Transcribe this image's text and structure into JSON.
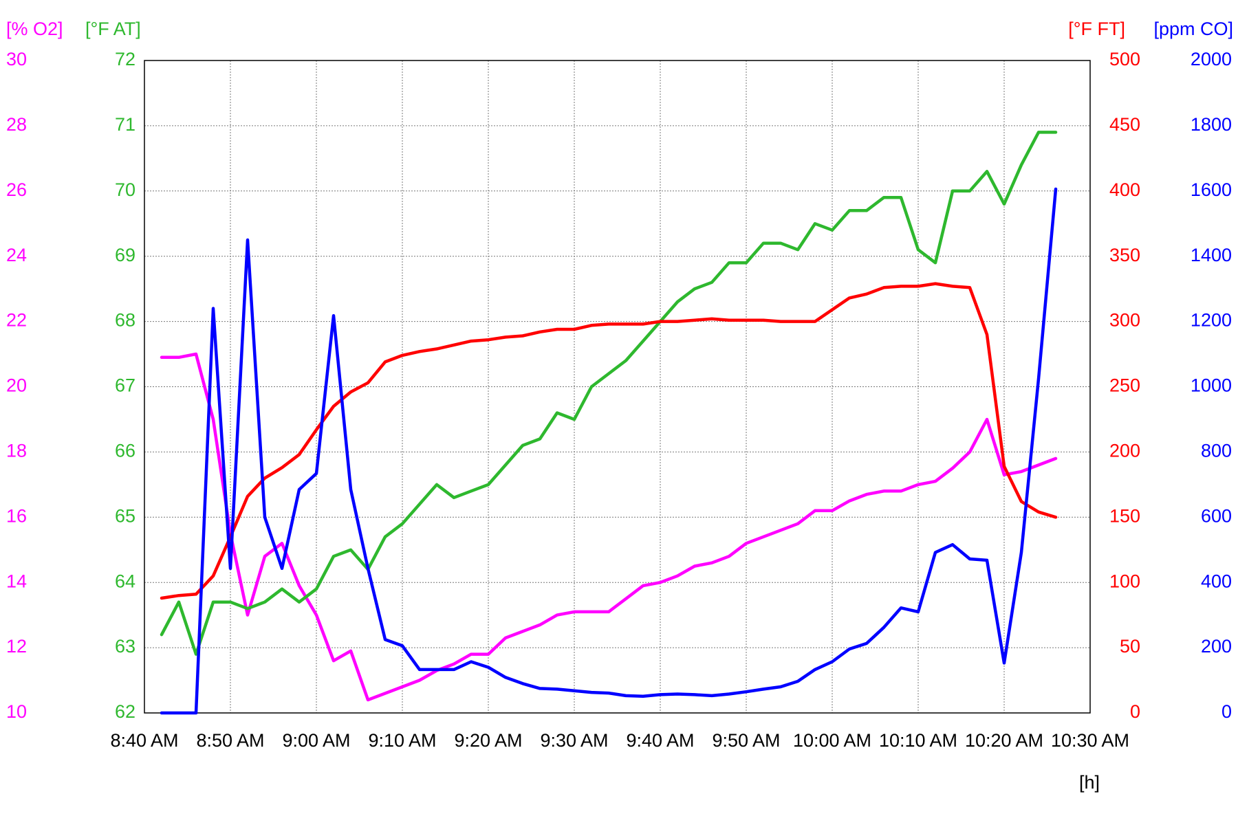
{
  "chart_data": {
    "type": "line",
    "xlabel": "[h]",
    "grid": true,
    "xlim": [
      520,
      630
    ],
    "xticks": [
      {
        "value": 520,
        "label": "8:40 AM"
      },
      {
        "value": 530,
        "label": "8:50 AM"
      },
      {
        "value": 540,
        "label": "9:00 AM"
      },
      {
        "value": 550,
        "label": "9:10 AM"
      },
      {
        "value": 560,
        "label": "9:20 AM"
      },
      {
        "value": 570,
        "label": "9:30 AM"
      },
      {
        "value": 580,
        "label": "9:40 AM"
      },
      {
        "value": 590,
        "label": "9:50 AM"
      },
      {
        "value": 600,
        "label": "10:00 AM"
      },
      {
        "value": 610,
        "label": "10:10 AM"
      },
      {
        "value": 620,
        "label": "10:20 AM"
      },
      {
        "value": 630,
        "label": "10:30 AM"
      }
    ],
    "x": [
      522,
      524,
      526,
      528,
      530,
      532,
      534,
      536,
      538,
      540,
      542,
      544,
      546,
      548,
      550,
      552,
      554,
      556,
      558,
      560,
      562,
      564,
      566,
      568,
      570,
      572,
      574,
      576,
      578,
      580,
      582,
      584,
      586,
      588,
      590,
      592,
      594,
      596,
      598,
      600,
      602,
      604,
      606,
      608,
      610,
      612,
      614,
      616,
      618,
      620,
      622,
      624,
      626
    ],
    "series": [
      {
        "name": "[% O2]",
        "color": "#ff00ff",
        "axis_side": "left",
        "axis_position": "outer",
        "ylim": [
          10,
          30
        ],
        "yticks": [
          10,
          12,
          14,
          16,
          18,
          20,
          22,
          24,
          26,
          28,
          30
        ],
        "values": [
          20.9,
          20.9,
          21.0,
          19.0,
          15.5,
          13.0,
          14.8,
          15.2,
          13.9,
          13.0,
          11.6,
          11.9,
          10.4,
          10.6,
          10.8,
          11.0,
          11.3,
          11.5,
          11.8,
          11.8,
          12.3,
          12.5,
          12.7,
          13.0,
          13.1,
          13.1,
          13.1,
          13.5,
          13.9,
          14.0,
          14.2,
          14.5,
          14.6,
          14.8,
          15.2,
          15.4,
          15.6,
          15.8,
          16.2,
          16.2,
          16.5,
          16.7,
          16.8,
          16.8,
          17.0,
          17.1,
          17.5,
          18.0,
          19.0,
          17.3,
          17.4,
          17.6,
          17.8
        ]
      },
      {
        "name": "[°F AT]",
        "color": "#2eb82e",
        "axis_side": "left",
        "axis_position": "inner",
        "ylim": [
          62,
          72
        ],
        "yticks": [
          62,
          63,
          64,
          65,
          66,
          67,
          68,
          69,
          70,
          71,
          72
        ],
        "values": [
          63.2,
          63.7,
          62.9,
          63.7,
          63.7,
          63.6,
          63.7,
          63.9,
          63.7,
          63.9,
          64.4,
          64.5,
          64.2,
          64.7,
          64.9,
          65.2,
          65.5,
          65.3,
          65.4,
          65.5,
          65.8,
          66.1,
          66.2,
          66.6,
          66.5,
          67.0,
          67.2,
          67.4,
          67.7,
          68.0,
          68.3,
          68.5,
          68.6,
          68.9,
          68.9,
          69.2,
          69.2,
          69.1,
          69.5,
          69.4,
          69.7,
          69.7,
          69.9,
          69.9,
          69.1,
          68.9,
          70.0,
          70.0,
          70.3,
          69.8,
          70.4,
          70.9,
          70.9
        ]
      },
      {
        "name": "[°F FT]",
        "color": "#ff0000",
        "axis_side": "right",
        "axis_position": "inner",
        "ylim": [
          0,
          500
        ],
        "yticks": [
          0,
          50,
          100,
          150,
          200,
          250,
          300,
          350,
          400,
          450,
          500
        ],
        "values": [
          88,
          90,
          91,
          105,
          135,
          166,
          180,
          188,
          198,
          217,
          235,
          246,
          253,
          269,
          274,
          277,
          279,
          282,
          285,
          286,
          288,
          289,
          292,
          294,
          294,
          297,
          298,
          298,
          298,
          300,
          300,
          301,
          302,
          301,
          301,
          301,
          300,
          300,
          300,
          309,
          318,
          321,
          326,
          327,
          327,
          329,
          327,
          326,
          290,
          189,
          162,
          154,
          150
        ]
      },
      {
        "name": "[ppm CO]",
        "color": "#0000ff",
        "axis_side": "right",
        "axis_position": "outer",
        "ylim": [
          0,
          2000
        ],
        "yticks": [
          0,
          200,
          400,
          600,
          800,
          1000,
          1200,
          1400,
          1600,
          1800,
          2000
        ],
        "values": [
          0,
          0,
          0,
          1240,
          443,
          1450,
          600,
          443,
          685,
          734,
          1218,
          685,
          443,
          225,
          206,
          133,
          133,
          133,
          157,
          140,
          109,
          90,
          75,
          73,
          68,
          63,
          61,
          53,
          51,
          56,
          58,
          56,
          53,
          58,
          65,
          73,
          80,
          97,
          133,
          157,
          196,
          213,
          262,
          322,
          310,
          492,
          516,
          472,
          468,
          153,
          492,
          1024,
          1606
        ]
      }
    ]
  }
}
